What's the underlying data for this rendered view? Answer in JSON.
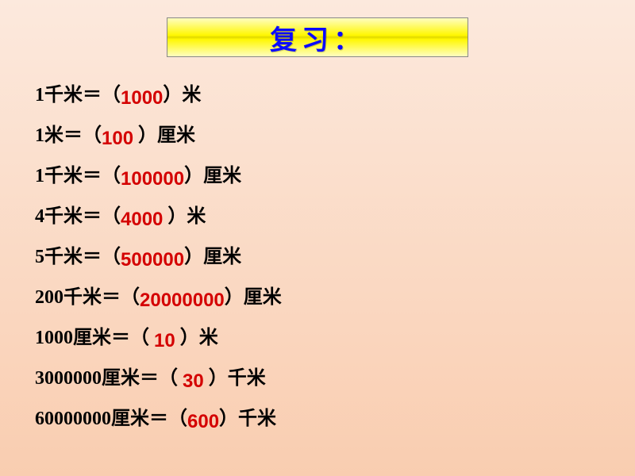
{
  "title": "复习：",
  "rows": [
    {
      "pre": "1千米＝（",
      "answer": "1000",
      "post": "）米"
    },
    {
      "pre": "1米＝（",
      "answer": "100",
      "post": " ）厘米"
    },
    {
      "pre": "1千米＝（",
      "answer": "100000",
      "post": "）厘米"
    },
    {
      "pre": "4千米＝（",
      "answer": "4000",
      "post": " ）米"
    },
    {
      "pre": "5千米＝（",
      "answer": "500000",
      "post": "）厘米"
    },
    {
      "pre": "200千米＝（",
      "answer": "20000000",
      "post": "）厘米"
    },
    {
      "pre": "1000厘米＝（ ",
      "answer": "10",
      "post": "  ）米"
    },
    {
      "pre": "3000000厘米＝（ ",
      "answer": "30",
      "post": " ）千米"
    },
    {
      "pre": "60000000厘米＝（",
      "answer": "600",
      "post": "）千米"
    }
  ],
  "colors": {
    "answer": "#d40000",
    "title": "#0a0aff",
    "text": "#000000",
    "bg_top": "#fce9dd",
    "bg_bottom": "#f9cdb0",
    "title_bg": "#fff700"
  }
}
